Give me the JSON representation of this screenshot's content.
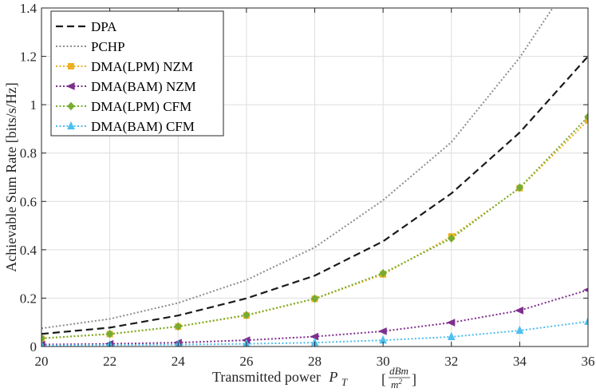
{
  "chart_data": {
    "type": "line",
    "title": "",
    "xlabel": "Transmitted power",
    "xlabel_symbol": "P",
    "xlabel_subscript": "T",
    "xlabel_unit_num": "dBm",
    "xlabel_unit_den": "m",
    "xlabel_unit_den_exp": "2",
    "ylabel": "Achievable Sum Rate [bits/s/Hz]",
    "xlim": [
      20,
      36
    ],
    "ylim": [
      0,
      1.4
    ],
    "grid": true,
    "legend_position": "top-left",
    "x": [
      20,
      22,
      24,
      26,
      28,
      30,
      32,
      34,
      36
    ],
    "xticks": [
      "20",
      "22",
      "24",
      "26",
      "28",
      "30",
      "32",
      "34",
      "36"
    ],
    "yticks": [
      {
        "value": 0,
        "label": "0"
      },
      {
        "value": 0.2,
        "label": "0.2"
      },
      {
        "value": 0.4,
        "label": "0.4"
      },
      {
        "value": 0.6,
        "label": "0.6"
      },
      {
        "value": 0.8,
        "label": "0.8"
      },
      {
        "value": 1.0,
        "label": "1"
      },
      {
        "value": 1.2,
        "label": "1.2"
      },
      {
        "value": 1.4,
        "label": "1.4"
      }
    ],
    "series": [
      {
        "name": "DPA",
        "color": "#1a1a1a",
        "style": "dashed",
        "marker": "none",
        "values": [
          0.052,
          0.078,
          0.128,
          0.199,
          0.293,
          0.435,
          0.633,
          0.885,
          1.2
        ]
      },
      {
        "name": "PCHP",
        "color": "#8c8c8c",
        "style": "dotted",
        "marker": "none",
        "values": [
          0.075,
          0.114,
          0.18,
          0.275,
          0.41,
          0.605,
          0.845,
          1.195,
          1.62
        ]
      },
      {
        "name": "DMA(LPM) NZM",
        "color": "#edb120",
        "style": "dotted",
        "marker": "square",
        "values": [
          0.033,
          0.051,
          0.082,
          0.128,
          0.197,
          0.298,
          0.455,
          0.655,
          0.935
        ]
      },
      {
        "name": "DMA(BAM) NZM",
        "color": "#7e2f8e",
        "style": "dotted",
        "marker": "triangle-left",
        "values": [
          0.008,
          0.011,
          0.016,
          0.026,
          0.041,
          0.063,
          0.099,
          0.149,
          0.234
        ]
      },
      {
        "name": "DMA(LPM) CFM",
        "color": "#77ac30",
        "style": "dotted",
        "marker": "diamond",
        "values": [
          0.034,
          0.052,
          0.083,
          0.13,
          0.198,
          0.303,
          0.447,
          0.657,
          0.95
        ]
      },
      {
        "name": "DMA(BAM) CFM",
        "color": "#4dbeee",
        "style": "dotted",
        "marker": "triangle-up",
        "values": [
          0.004,
          0.006,
          0.008,
          0.011,
          0.016,
          0.026,
          0.04,
          0.066,
          0.103
        ]
      }
    ]
  }
}
